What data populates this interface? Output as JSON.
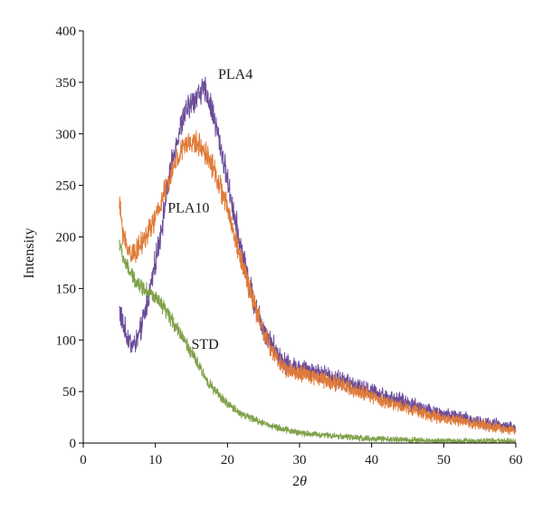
{
  "chart_data": {
    "type": "line",
    "title": "",
    "xlabel": "2θ",
    "ylabel": "Intensity",
    "xlim": [
      0,
      60
    ],
    "ylim": [
      0,
      400
    ],
    "xticks": [
      "0",
      "10",
      "20",
      "30",
      "40",
      "50",
      "60"
    ],
    "yticks": [
      "0",
      "50",
      "100",
      "150",
      "200",
      "250",
      "300",
      "350",
      "400"
    ],
    "grid": false,
    "legend": "none (series labelled directly on the plot)",
    "series": [
      {
        "name": "PLA4",
        "color": "#6B4C9A",
        "noise": 10,
        "x": [
          5,
          5.5,
          6,
          6.5,
          7,
          7.5,
          8,
          9,
          10,
          11,
          12,
          13,
          14,
          15,
          16,
          17,
          18,
          19,
          20,
          21,
          22,
          23,
          24,
          25,
          26,
          27,
          28,
          30,
          32,
          35,
          38,
          40,
          43,
          45,
          48,
          50,
          53,
          55,
          58,
          60
        ],
        "y": [
          130,
          115,
          105,
          98,
          95,
          100,
          110,
          140,
          175,
          215,
          260,
          295,
          318,
          330,
          340,
          342,
          320,
          290,
          255,
          220,
          185,
          155,
          130,
          112,
          98,
          87,
          78,
          72,
          70,
          63,
          55,
          50,
          43,
          39,
          32,
          28,
          24,
          21,
          17,
          14
        ]
      },
      {
        "name": "PLA10",
        "color": "#E07B39",
        "noise": 9,
        "x": [
          5,
          5.5,
          6,
          6.5,
          7,
          7.5,
          8,
          9,
          10,
          11,
          12,
          13,
          14,
          15,
          16,
          17,
          18,
          19,
          20,
          21,
          22,
          23,
          24,
          25,
          26,
          27,
          28,
          30,
          32,
          35,
          38,
          40,
          43,
          45,
          48,
          50,
          53,
          55,
          58,
          60
        ],
        "y": [
          232,
          205,
          190,
          185,
          185,
          188,
          192,
          205,
          218,
          238,
          258,
          275,
          288,
          292,
          290,
          282,
          268,
          248,
          228,
          200,
          175,
          152,
          128,
          108,
          92,
          80,
          72,
          67,
          65,
          58,
          50,
          45,
          38,
          34,
          27,
          24,
          20,
          18,
          14,
          12
        ]
      },
      {
        "name": "STD",
        "color": "#7FA14A",
        "noise": 6,
        "x": [
          5,
          5.5,
          6,
          6.5,
          7,
          8,
          9,
          10,
          11,
          12,
          13,
          14,
          15,
          16,
          17,
          18,
          19,
          20,
          21,
          22,
          24,
          26,
          28,
          30,
          33,
          35,
          38,
          40,
          45,
          50,
          55,
          60
        ],
        "y": [
          195,
          180,
          172,
          165,
          160,
          152,
          148,
          140,
          132,
          122,
          112,
          100,
          88,
          75,
          63,
          53,
          45,
          38,
          33,
          28,
          22,
          17,
          13,
          10,
          8,
          7,
          5,
          4,
          3,
          2,
          2,
          2
        ]
      }
    ],
    "annotations": [
      {
        "text": "PLA4",
        "x": 18.7,
        "y": 358
      },
      {
        "text": "PLA10",
        "x": 11.7,
        "y": 228
      },
      {
        "text": "STD",
        "x": 15,
        "y": 96
      }
    ]
  }
}
